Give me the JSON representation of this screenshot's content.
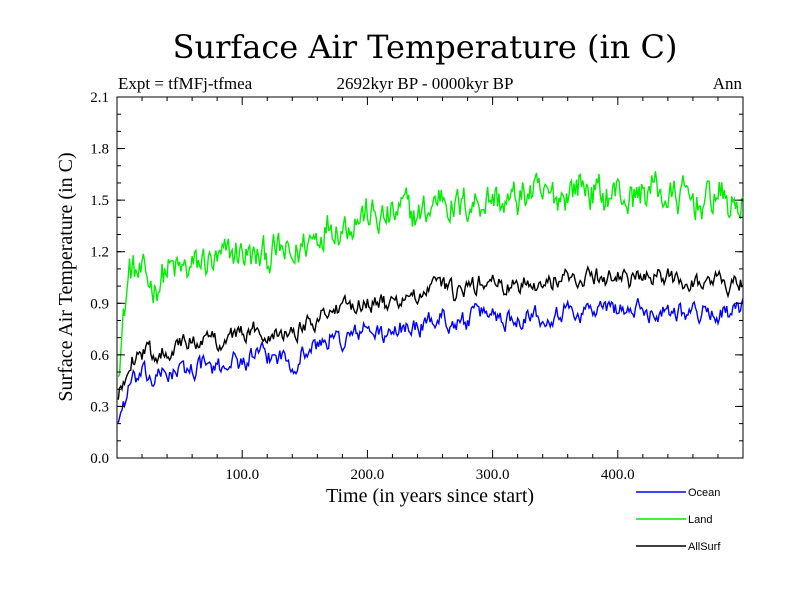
{
  "header": {
    "expt": "Expt = tfMFj-tfmea",
    "period": "2692kyr BP - 0000kyr BP",
    "season": "Ann"
  },
  "chart_data": {
    "type": "line",
    "title": "Surface Air Temperature (in C)",
    "xlabel": "Time (in years since start)",
    "ylabel": "Surface Air Temperature (in C)",
    "xlim": [
      0,
      500
    ],
    "ylim": [
      0.0,
      2.1
    ],
    "xticks": [
      100,
      200,
      300,
      400
    ],
    "xtick_labels": [
      "100.0",
      "200.0",
      "300.0",
      "400.0"
    ],
    "yticks": [
      0.0,
      0.3,
      0.6,
      0.9,
      1.2,
      1.5,
      1.8,
      2.1
    ],
    "ytick_labels": [
      "0.0",
      "0.3",
      "0.6",
      "0.9",
      "1.2",
      "1.5",
      "1.8",
      "2.1"
    ],
    "legend_position": "bottom-right outside",
    "x": [
      0,
      10,
      20,
      30,
      40,
      50,
      60,
      70,
      80,
      90,
      100,
      110,
      120,
      130,
      140,
      150,
      160,
      170,
      180,
      190,
      200,
      210,
      220,
      230,
      240,
      250,
      260,
      270,
      280,
      290,
      300,
      310,
      320,
      330,
      340,
      350,
      360,
      370,
      380,
      390,
      400,
      410,
      420,
      430,
      440,
      450,
      460,
      470,
      480,
      490,
      500
    ],
    "series": [
      {
        "name": "Ocean",
        "color": "#0000ff",
        "values": [
          0.2,
          0.42,
          0.48,
          0.45,
          0.5,
          0.5,
          0.52,
          0.55,
          0.5,
          0.58,
          0.55,
          0.6,
          0.58,
          0.6,
          0.55,
          0.62,
          0.65,
          0.7,
          0.68,
          0.72,
          0.75,
          0.72,
          0.7,
          0.78,
          0.75,
          0.8,
          0.82,
          0.78,
          0.8,
          0.84,
          0.85,
          0.8,
          0.82,
          0.85,
          0.82,
          0.85,
          0.86,
          0.85,
          0.87,
          0.86,
          0.88,
          0.85,
          0.86,
          0.84,
          0.87,
          0.86,
          0.85,
          0.84,
          0.85,
          0.84,
          0.86
        ]
      },
      {
        "name": "Land",
        "color": "#00ee00",
        "values": [
          0.5,
          1.1,
          1.05,
          1.0,
          1.1,
          1.08,
          1.1,
          1.15,
          1.12,
          1.18,
          1.2,
          1.15,
          1.18,
          1.2,
          1.15,
          1.25,
          1.3,
          1.38,
          1.35,
          1.4,
          1.42,
          1.38,
          1.4,
          1.45,
          1.4,
          1.45,
          1.55,
          1.45,
          1.48,
          1.5,
          1.52,
          1.48,
          1.5,
          1.55,
          1.5,
          1.52,
          1.55,
          1.6,
          1.55,
          1.52,
          1.55,
          1.5,
          1.55,
          1.58,
          1.5,
          1.52,
          1.5,
          1.48,
          1.55,
          1.45,
          1.5
        ]
      },
      {
        "name": "AllSurf",
        "color": "#000000",
        "values": [
          0.3,
          0.58,
          0.62,
          0.6,
          0.64,
          0.65,
          0.68,
          0.7,
          0.68,
          0.72,
          0.72,
          0.74,
          0.73,
          0.75,
          0.72,
          0.78,
          0.82,
          0.87,
          0.85,
          0.9,
          0.92,
          0.9,
          0.88,
          0.95,
          0.92,
          0.97,
          1.02,
          0.95,
          0.98,
          1.02,
          1.03,
          0.98,
          1.0,
          1.05,
          1.0,
          1.03,
          1.05,
          1.06,
          1.06,
          1.04,
          1.07,
          1.03,
          1.05,
          1.04,
          1.05,
          1.04,
          1.03,
          1.01,
          1.04,
          1.0,
          1.04
        ]
      }
    ]
  }
}
